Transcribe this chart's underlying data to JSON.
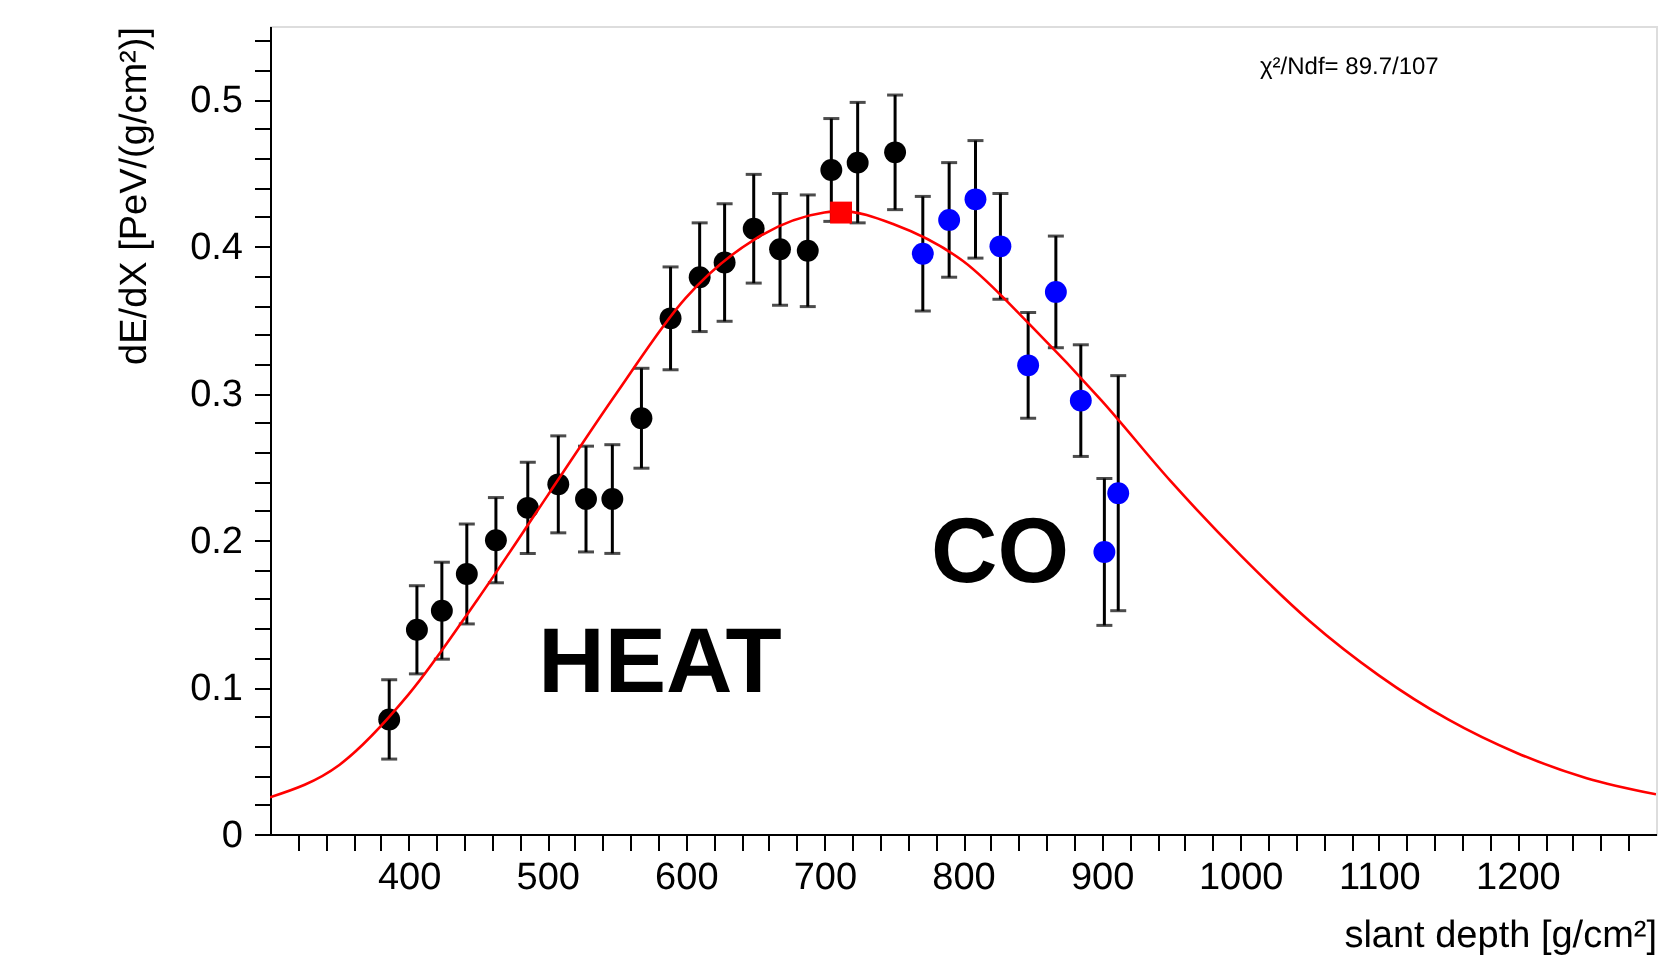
{
  "chart_data": {
    "type": "scatter",
    "xlabel": "slant depth [g/cm²]",
    "ylabel": "dE/dX [PeV/(g/cm²)]",
    "annotations": [
      "χ²/Ndf=  89.7/107"
    ],
    "xlim": [
      300,
      1300
    ],
    "ylim": [
      0,
      0.55
    ],
    "xticks": [
      {
        "value": 320,
        "label": null
      },
      {
        "value": 340,
        "label": null
      },
      {
        "value": 360,
        "label": null
      },
      {
        "value": 380,
        "label": null
      },
      400,
      {
        "value": 420,
        "label": null
      },
      {
        "value": 440,
        "label": null
      },
      {
        "value": 460,
        "label": null
      },
      {
        "value": 480,
        "label": null
      },
      500,
      {
        "value": 520,
        "label": null
      },
      {
        "value": 540,
        "label": null
      },
      {
        "value": 560,
        "label": null
      },
      {
        "value": 580,
        "label": null
      },
      600,
      {
        "value": 620,
        "label": null
      },
      {
        "value": 640,
        "label": null
      },
      {
        "value": 660,
        "label": null
      },
      {
        "value": 680,
        "label": null
      },
      700,
      {
        "value": 720,
        "label": null
      },
      {
        "value": 740,
        "label": null
      },
      {
        "value": 760,
        "label": null
      },
      {
        "value": 780,
        "label": null
      },
      800,
      {
        "value": 820,
        "label": null
      },
      {
        "value": 840,
        "label": null
      },
      {
        "value": 860,
        "label": null
      },
      {
        "value": 880,
        "label": null
      },
      900,
      {
        "value": 920,
        "label": null
      },
      {
        "value": 940,
        "label": null
      },
      {
        "value": 960,
        "label": null
      },
      {
        "value": 980,
        "label": null
      },
      1000,
      {
        "value": 1020,
        "label": null
      },
      {
        "value": 1040,
        "label": null
      },
      {
        "value": 1060,
        "label": null
      },
      {
        "value": 1080,
        "label": null
      },
      1100,
      {
        "value": 1120,
        "label": null
      },
      {
        "value": 1140,
        "label": null
      },
      {
        "value": 1160,
        "label": null
      },
      {
        "value": 1180,
        "label": null
      },
      1200,
      {
        "value": 1220,
        "label": null
      },
      {
        "value": 1240,
        "label": null
      },
      {
        "value": 1260,
        "label": null
      },
      {
        "value": 1280,
        "label": null
      }
    ],
    "yticks": [
      0,
      {
        "value": 0.02,
        "label": null
      },
      {
        "value": 0.04,
        "label": null
      },
      {
        "value": 0.06,
        "label": null
      },
      {
        "value": 0.08,
        "label": null
      },
      0.1,
      {
        "value": 0.12,
        "label": null
      },
      {
        "value": 0.14,
        "label": null
      },
      {
        "value": 0.16,
        "label": null
      },
      {
        "value": 0.18,
        "label": null
      },
      0.2,
      {
        "value": 0.22,
        "label": null
      },
      {
        "value": 0.24,
        "label": null
      },
      {
        "value": 0.26,
        "label": null
      },
      {
        "value": 0.28,
        "label": null
      },
      0.3,
      {
        "value": 0.32,
        "label": null
      },
      {
        "value": 0.34,
        "label": null
      },
      {
        "value": 0.36,
        "label": null
      },
      {
        "value": 0.38,
        "label": null
      },
      0.4,
      {
        "value": 0.42,
        "label": null
      },
      {
        "value": 0.44,
        "label": null
      },
      {
        "value": 0.46,
        "label": null
      },
      {
        "value": 0.48,
        "label": null
      },
      0.5,
      {
        "value": 0.52,
        "label": null
      },
      {
        "value": 0.54,
        "label": null
      }
    ],
    "grid": false,
    "series": [
      {
        "name": "HEAT",
        "color": "#000000",
        "marker": "circle",
        "x": [
          386,
          406,
          424,
          442,
          463,
          486,
          508,
          528,
          547,
          568,
          589,
          610,
          628,
          649,
          668,
          688,
          705,
          724,
          751
        ],
        "values": [
          0.078,
          0.139,
          0.152,
          0.177,
          0.2,
          0.222,
          0.238,
          0.228,
          0.228,
          0.283,
          0.351,
          0.379,
          0.389,
          0.412,
          0.398,
          0.397,
          0.452,
          0.457,
          0.464
        ],
        "errors": [
          0.027,
          0.03,
          0.033,
          0.034,
          0.029,
          0.031,
          0.033,
          0.036,
          0.037,
          0.034,
          0.035,
          0.037,
          0.04,
          0.037,
          0.038,
          0.038,
          0.035,
          0.041,
          0.039
        ]
      },
      {
        "name": "CO",
        "color": "#0000ff",
        "marker": "circle",
        "x": [
          771,
          790,
          809,
          827,
          847,
          867,
          885,
          902,
          912
        ],
        "values": [
          0.395,
          0.418,
          0.432,
          0.4,
          0.319,
          0.369,
          0.295,
          0.192,
          0.232
        ],
        "errors": [
          0.039,
          0.039,
          0.04,
          0.036,
          0.036,
          0.038,
          0.038,
          0.05,
          0.08
        ]
      },
      {
        "color": "#ff0000",
        "marker": "square",
        "x": [
          712
        ],
        "values": [
          0.423
        ]
      },
      {
        "type": "line",
        "color": "#ff0000",
        "marker": "none",
        "line_style": "solid",
        "x": [
          300,
          350,
          400,
          450,
          500,
          550,
          600,
          650,
          700,
          712,
          750,
          800,
          850,
          900,
          950,
          1000,
          1050,
          1100,
          1150,
          1200,
          1250,
          1300
        ],
        "values": [
          0.025,
          0.047,
          0.095,
          0.16,
          0.23,
          0.3,
          0.365,
          0.405,
          0.423,
          0.424,
          0.415,
          0.39,
          0.345,
          0.295,
          0.24,
          0.19,
          0.145,
          0.108,
          0.078,
          0.055,
          0.038,
          0.027
        ]
      }
    ]
  }
}
